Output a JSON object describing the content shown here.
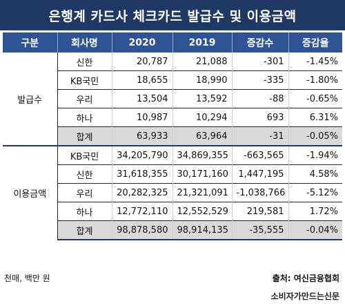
{
  "title": "은행계 카드사 체크카드 발급수 및 이용금액",
  "headers": [
    "구분",
    "회사명",
    "2020",
    "2019",
    "증감수",
    "증감율"
  ],
  "sections": [
    {
      "label": "발급수",
      "rows": [
        {
          "company": "신한",
          "y2020": "20,787",
          "y2019": "21,088",
          "diff": "-301",
          "rate": "-1.45%"
        },
        {
          "company": "KB국민",
          "y2020": "18,655",
          "y2019": "18,990",
          "diff": "-335",
          "rate": "-1.80%"
        },
        {
          "company": "우리",
          "y2020": "13,504",
          "y2019": "13,592",
          "diff": "-88",
          "rate": "-0.65%"
        },
        {
          "company": "하나",
          "y2020": "10,987",
          "y2019": "10,294",
          "diff": "693",
          "rate": "6.31%"
        },
        {
          "company": "합계",
          "y2020": "63,933",
          "y2019": "63,964",
          "diff": "-31",
          "rate": "-0.05%"
        }
      ]
    },
    {
      "label": "이용금액",
      "rows": [
        {
          "company": "KB국민",
          "y2020": "34,205,790",
          "y2019": "34,869,355",
          "diff": "-663,565",
          "rate": "-1.94%"
        },
        {
          "company": "신한",
          "y2020": "31,618,355",
          "y2019": "30,171,160",
          "diff": "1,447,195",
          "rate": "4.58%"
        },
        {
          "company": "우리",
          "y2020": "20,282,325",
          "y2019": "21,321,091",
          "diff": "-1,038,766",
          "rate": "-5.12%"
        },
        {
          "company": "하나",
          "y2020": "12,772,110",
          "y2019": "12,552,529",
          "diff": "219,581",
          "rate": "1.72%"
        },
        {
          "company": "합계",
          "y2020": "98,878,580",
          "y2019": "98,914,135",
          "diff": "-35,555",
          "rate": "-0.04%"
        }
      ]
    }
  ],
  "footer": {
    "unit": "천매, 백만 원",
    "source": "출처: 여신금융협회",
    "credit": "소비자가만드는신문"
  },
  "colors": {
    "title_bg": "#1f3864",
    "header_bg": "#2f5496",
    "total_row_bg": "#d9d9d9"
  }
}
